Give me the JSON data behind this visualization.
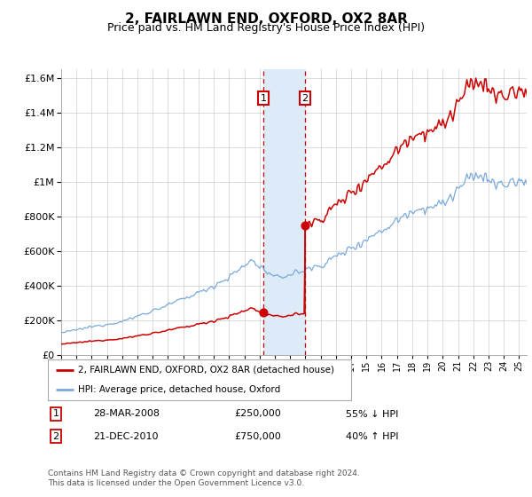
{
  "title": "2, FAIRLAWN END, OXFORD, OX2 8AR",
  "subtitle": "Price paid vs. HM Land Registry's House Price Index (HPI)",
  "title_fontsize": 11,
  "subtitle_fontsize": 9,
  "purchase1_label": "28-MAR-2008",
  "purchase1_price": 250000,
  "purchase1_pct": "55% ↓ HPI",
  "purchase1_year": 2008.24,
  "purchase2_label": "21-DEC-2010",
  "purchase2_price": 750000,
  "purchase2_pct": "40% ↑ HPI",
  "purchase2_year": 2010.97,
  "property_label": "2, FAIRLAWN END, OXFORD, OX2 8AR (detached house)",
  "hpi_label": "HPI: Average price, detached house, Oxford",
  "line_color_property": "#cc0000",
  "line_color_hpi": "#7aaadd",
  "background_color": "#ffffff",
  "grid_color": "#cccccc",
  "highlight_fill": "#ddeaf8",
  "highlight_edge": "#cc0000",
  "ylim_max": 1650000,
  "yticks": [
    0,
    200000,
    400000,
    600000,
    800000,
    1000000,
    1200000,
    1400000,
    1600000
  ],
  "footer": "Contains HM Land Registry data © Crown copyright and database right 2024.\nThis data is licensed under the Open Government Licence v3.0.",
  "purchase_box_color": "#cc0000"
}
